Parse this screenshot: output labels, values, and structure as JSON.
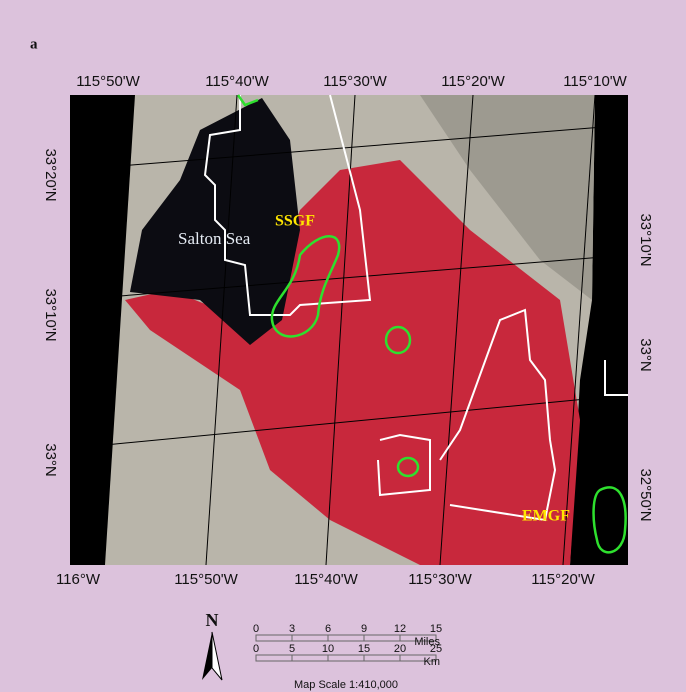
{
  "panel_label": "a",
  "top_labels": [
    "115°50'W",
    "115°40'W",
    "115°30'W",
    "115°20'W",
    "115°10'W"
  ],
  "bottom_labels": [
    "116°W",
    "115°50'W",
    "115°40'W",
    "115°30'W",
    "115°20'W"
  ],
  "left_labels": [
    "33°20'N",
    "33°10'N",
    "33°N"
  ],
  "right_labels": [
    "33°10'N",
    "33°N",
    "32°50'N"
  ],
  "places": {
    "sea": "Salton Sea",
    "ssgf": "SSGF",
    "emgf": "EMGF"
  },
  "north": "N",
  "scale": {
    "miles": [
      0,
      3,
      6,
      9,
      12,
      15
    ],
    "miles_unit": "Miles",
    "km": [
      0,
      5,
      10,
      15,
      20,
      25
    ],
    "km_unit": "Km",
    "caption": "Map Scale 1:410,000"
  }
}
